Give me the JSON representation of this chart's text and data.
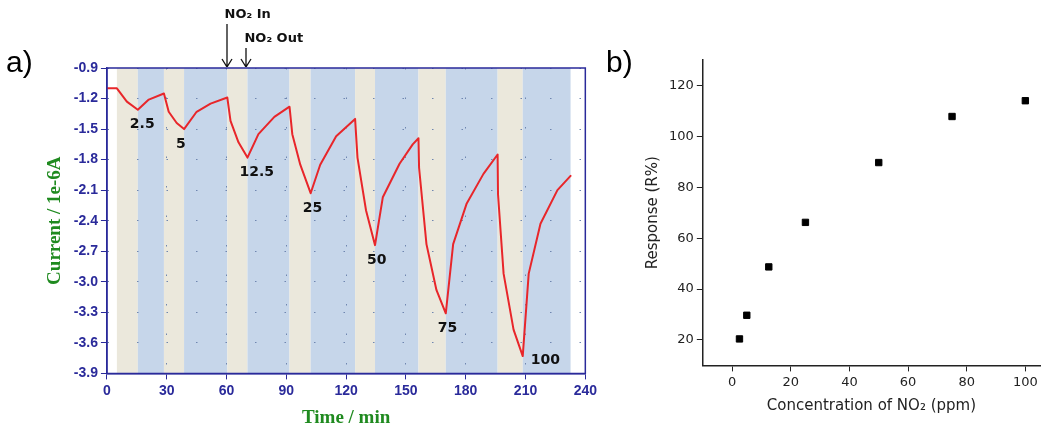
{
  "chart_data": [
    {
      "type": "line",
      "title": "a)",
      "xlabel": "Time / min",
      "ylabel": "Current / 1e-6A",
      "x": [
        0,
        5,
        10,
        15.5,
        21,
        28.6,
        31,
        35,
        38.7,
        45,
        52,
        60.4,
        62,
        66,
        70.5,
        76,
        84,
        91.6,
        93,
        97,
        102.2,
        107,
        115,
        124.5,
        125.7,
        130,
        134.5,
        138.4,
        146.8,
        153.4,
        156.3,
        156.6,
        160.3,
        165.3,
        170,
        173.7,
        180.5,
        188.9,
        196,
        196.2,
        199,
        204,
        208.6,
        211.6,
        217.5,
        226,
        232.6
      ],
      "series": [
        {
          "color": "#e8262a",
          "values": [
            -1.1,
            -1.1,
            -1.23,
            -1.31,
            -1.21,
            -1.15,
            -1.33,
            -1.44,
            -1.5,
            -1.33,
            -1.25,
            -1.19,
            -1.42,
            -1.63,
            -1.78,
            -1.55,
            -1.38,
            -1.28,
            -1.55,
            -1.85,
            -2.13,
            -1.85,
            -1.57,
            -1.4,
            -1.78,
            -2.3,
            -2.64,
            -2.17,
            -1.84,
            -1.65,
            -1.59,
            -1.88,
            -2.63,
            -3.08,
            -3.31,
            -2.63,
            -2.23,
            -1.94,
            -1.75,
            -2.14,
            -2.92,
            -3.47,
            -3.73,
            -2.92,
            -2.43,
            -2.1,
            -1.96
          ]
        }
      ],
      "xlim": [
        0,
        240
      ],
      "xticks": [
        0,
        30,
        60,
        90,
        120,
        150,
        180,
        210,
        240
      ],
      "ylim": [
        -3.9,
        -0.9
      ],
      "yticks": [
        -3.9,
        -3.6,
        -3.3,
        {
          "value": -3,
          "label": "-3.0"
        },
        -2.7,
        -2.4,
        -2.1,
        -1.8,
        -1.5,
        -1.2,
        -0.9
      ],
      "grid": true,
      "bands": [
        {
          "axis": "x",
          "from": 5,
          "to": 15.5,
          "color": "#ebe8dc"
        },
        {
          "axis": "x",
          "from": 15.5,
          "to": 28.6,
          "color": "#c6d6ea"
        },
        {
          "axis": "x",
          "from": 28.6,
          "to": 38.7,
          "color": "#ebe8dc"
        },
        {
          "axis": "x",
          "from": 38.7,
          "to": 60.4,
          "color": "#c6d6ea"
        },
        {
          "axis": "x",
          "from": 60.4,
          "to": 70.5,
          "color": "#ebe8dc"
        },
        {
          "axis": "x",
          "from": 70.5,
          "to": 91.6,
          "color": "#c6d6ea"
        },
        {
          "axis": "x",
          "from": 91.6,
          "to": 102.2,
          "color": "#ebe8dc"
        },
        {
          "axis": "x",
          "from": 102.2,
          "to": 124.5,
          "color": "#c6d6ea"
        },
        {
          "axis": "x",
          "from": 124.5,
          "to": 134.5,
          "color": "#ebe8dc"
        },
        {
          "axis": "x",
          "from": 134.5,
          "to": 156.3,
          "color": "#c6d6ea"
        },
        {
          "axis": "x",
          "from": 156.3,
          "to": 170,
          "color": "#ebe8dc"
        },
        {
          "axis": "x",
          "from": 170,
          "to": 196,
          "color": "#c6d6ea"
        },
        {
          "axis": "x",
          "from": 196,
          "to": 208.6,
          "color": "#ebe8dc"
        },
        {
          "axis": "x",
          "from": 208.6,
          "to": 232.6,
          "color": "#c6d6ea"
        }
      ],
      "annotations": [
        {
          "text": "2.5",
          "x": 15.5,
          "y": -1.31
        },
        {
          "text": "5",
          "x": 38.7,
          "y": -1.5
        },
        {
          "text": "12.5",
          "x": 70.5,
          "y": -1.78
        },
        {
          "text": "25",
          "x": 102.2,
          "y": -2.13
        },
        {
          "text": "50",
          "x": 134.5,
          "y": -2.64
        },
        {
          "text": "75",
          "x": 170,
          "y": -3.31
        },
        {
          "text": "100",
          "x": 208.6,
          "y": -3.73
        },
        {
          "text": "NO₂ In",
          "x": 60,
          "y": -0.9
        },
        {
          "text": "NO₂ Out",
          "x": 70,
          "y": -0.9
        }
      ]
    },
    {
      "type": "scatter",
      "title": "b)",
      "xlabel": "Concentration of NO₂ (ppm)",
      "ylabel": "Response (R%)",
      "x": [
        2.5,
        5,
        12.5,
        25,
        50,
        75,
        100
      ],
      "series": [
        {
          "color": "#000000",
          "values": [
            20.4,
            29.7,
            48.7,
            66.2,
            89.7,
            107.8,
            114
          ]
        }
      ],
      "marker": "square",
      "xlim": [
        -10,
        105
      ],
      "xticks": [
        0,
        20,
        40,
        60,
        80,
        100
      ],
      "ylim": [
        10,
        130
      ],
      "yticks": [
        20,
        40,
        60,
        80,
        100,
        120
      ]
    }
  ]
}
